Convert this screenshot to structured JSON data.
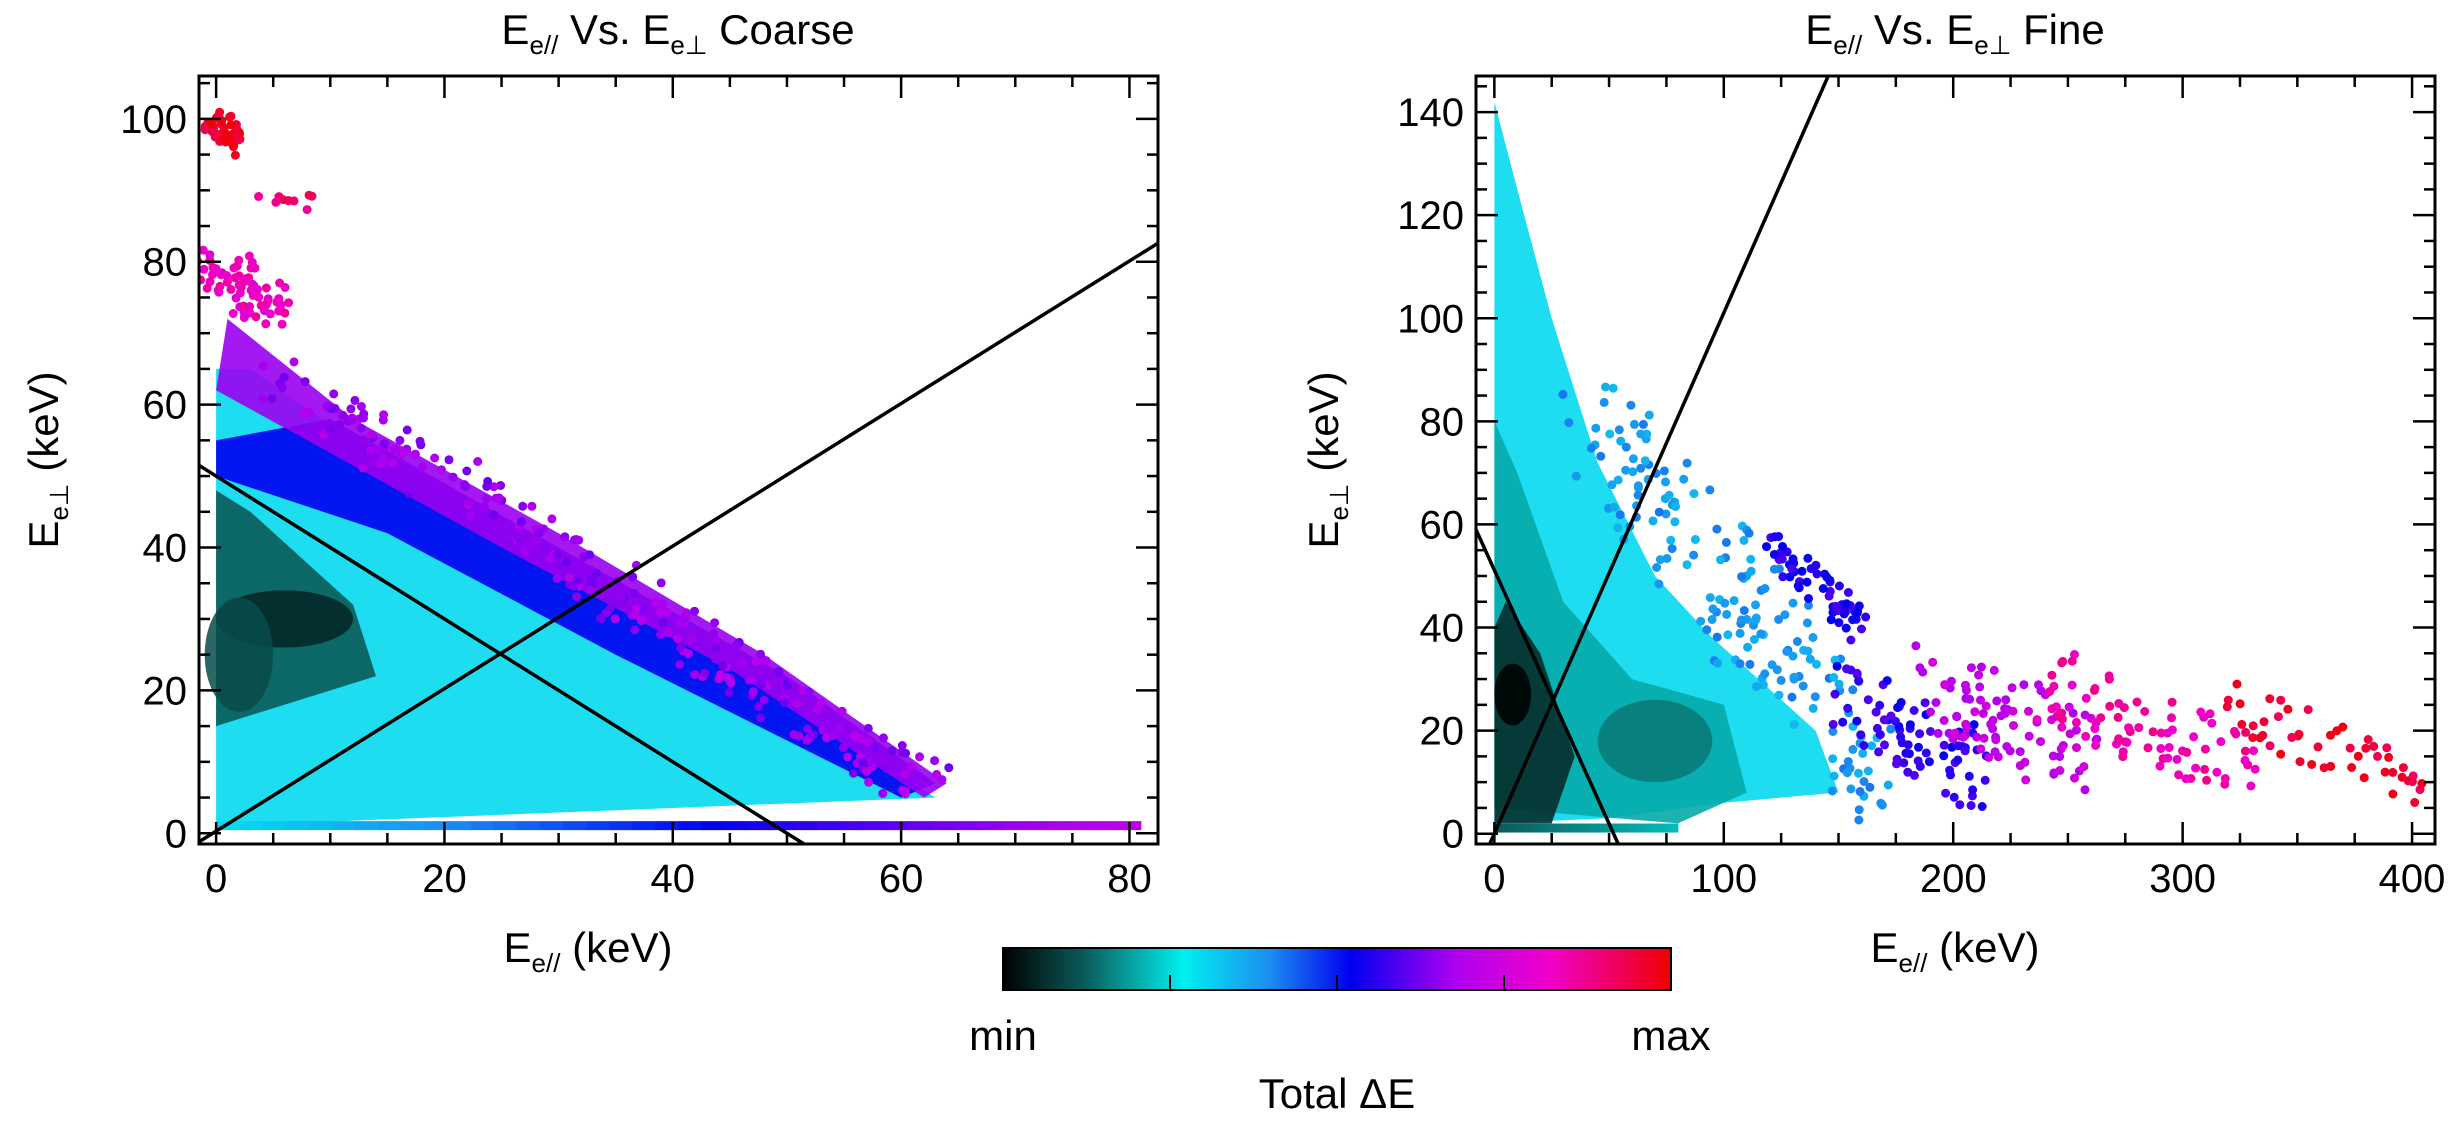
{
  "chart_data": [
    {
      "type": "scatter",
      "panel": "left",
      "title": {
        "main": "E",
        "sub1": "e//",
        "mid": " Vs. E",
        "sub2": "e⊥",
        "tail": "  Coarse"
      },
      "xlabel": {
        "main": "E",
        "sub": "e//",
        "tail": " (keV)"
      },
      "ylabel": {
        "main": "E",
        "sub": "e⊥",
        "tail": " (keV)"
      },
      "xlim": [
        -1.5,
        82.5
      ],
      "ylim": [
        -1.5,
        106
      ],
      "xticks": [
        0,
        20,
        40,
        60,
        80
      ],
      "yticks": [
        0,
        20,
        40,
        60,
        80,
        100
      ],
      "xtick_labels": [
        "0",
        "20",
        "40",
        "60",
        "80"
      ],
      "ytick_labels": [
        "0",
        "20",
        "40",
        "60",
        "80",
        "100"
      ],
      "color_by": "Total ΔE",
      "regions": [
        {
          "name": "main-triangle-fill",
          "points": [
            [
              0,
              1
            ],
            [
              63,
              5
            ],
            [
              30,
              38
            ],
            [
              12,
              55
            ],
            [
              3,
              65
            ],
            [
              0,
              65
            ]
          ],
          "c": 0.3
        },
        {
          "name": "dense-core",
          "points": [
            [
              0,
              15
            ],
            [
              14,
              22
            ],
            [
              12,
              32
            ],
            [
              3,
              45
            ],
            [
              0,
              48
            ]
          ],
          "c": 0.12
        },
        {
          "name": "upper-blue-band",
          "points": [
            [
              0,
              55
            ],
            [
              10,
              58
            ],
            [
              30,
              40
            ],
            [
              50,
              22
            ],
            [
              63,
              7
            ],
            [
              60,
              5
            ],
            [
              35,
              25
            ],
            [
              15,
              42
            ],
            [
              0,
              50
            ]
          ],
          "c": 0.52
        },
        {
          "name": "outer-purple-band",
          "points": [
            [
              1,
              72
            ],
            [
              12,
              58
            ],
            [
              30,
              42
            ],
            [
              48,
              25
            ],
            [
              64,
              7
            ],
            [
              62,
              5
            ],
            [
              45,
              23
            ],
            [
              25,
              40
            ],
            [
              8,
              55
            ],
            [
              0,
              62
            ]
          ],
          "c": 0.66
        }
      ],
      "clusters": [
        {
          "x": 6,
          "y": 30,
          "rx": 6,
          "ry": 4,
          "c": 0.05
        },
        {
          "x": 2,
          "y": 25,
          "rx": 3,
          "ry": 8,
          "c": 0.1
        }
      ],
      "scatter_bands": [
        {
          "x0": 0,
          "y0": 100,
          "x1": 1.5,
          "y1": 96,
          "spread": 1.5,
          "c": 0.96,
          "n": 45
        },
        {
          "x0": 0,
          "y0": 80,
          "x1": 5,
          "y1": 73,
          "spread": 2.5,
          "c": 0.82,
          "n": 70
        },
        {
          "x0": 6,
          "y0": 64,
          "x1": 62,
          "y1": 6,
          "spread": 3.0,
          "c": 0.66,
          "n": 260
        },
        {
          "x0": 4,
          "y0": 90,
          "x1": 9,
          "y1": 88,
          "spread": 1.2,
          "c": 0.9,
          "n": 10
        }
      ],
      "baseline": {
        "y": 1,
        "x_from": 0,
        "x_to": 81,
        "c_from": 0.3,
        "c_to": 0.72
      },
      "lines": [
        {
          "name": "diagonal-line-1",
          "x": [
            -1.5,
            82.5
          ],
          "y": [
            -1.2,
            82.6
          ]
        },
        {
          "name": "diagonal-line-2",
          "x": [
            -1.5,
            51.5
          ],
          "y": [
            51.5,
            -1.5
          ]
        }
      ]
    },
    {
      "type": "scatter",
      "panel": "right",
      "title": {
        "main": "E",
        "sub1": "e//",
        "mid": " Vs. E",
        "sub2": "e⊥",
        "tail": "  Fine"
      },
      "xlabel": {
        "main": "E",
        "sub": "e//",
        "tail": " (keV)"
      },
      "ylabel": {
        "main": "E",
        "sub": "e⊥",
        "tail": " (keV)"
      },
      "xlim": [
        -8,
        410
      ],
      "ylim": [
        -2,
        147
      ],
      "xticks": [
        0,
        100,
        200,
        300,
        400
      ],
      "yticks": [
        0,
        20,
        40,
        60,
        80,
        100,
        120,
        140
      ],
      "xtick_labels": [
        "0",
        "100",
        "200",
        "300",
        "400"
      ],
      "ytick_labels": [
        "0",
        "20",
        "40",
        "60",
        "80",
        "100",
        "120",
        "140"
      ],
      "color_by": "Total ΔE",
      "regions": [
        {
          "name": "cyan-plume",
          "points": [
            [
              0,
              142
            ],
            [
              10,
              125
            ],
            [
              25,
              100
            ],
            [
              45,
              72
            ],
            [
              70,
              50
            ],
            [
              95,
              38
            ],
            [
              120,
              28
            ],
            [
              140,
              20
            ],
            [
              150,
              8
            ],
            [
              100,
              6
            ],
            [
              50,
              3
            ],
            [
              0,
              2
            ]
          ],
          "c": 0.3
        },
        {
          "name": "teal-core",
          "points": [
            [
              0,
              5
            ],
            [
              80,
              2
            ],
            [
              110,
              8
            ],
            [
              100,
              25
            ],
            [
              60,
              30
            ],
            [
              30,
              45
            ],
            [
              10,
              70
            ],
            [
              0,
              80
            ]
          ],
          "c": 0.2
        },
        {
          "name": "dark-core",
          "points": [
            [
              0,
              2
            ],
            [
              25,
              2
            ],
            [
              35,
              15
            ],
            [
              20,
              35
            ],
            [
              5,
              45
            ],
            [
              0,
              40
            ]
          ],
          "c": 0.06
        }
      ],
      "clusters": [
        {
          "x": 8,
          "y": 27,
          "rx": 8,
          "ry": 6,
          "c": 0.0
        },
        {
          "x": 70,
          "y": 18,
          "rx": 25,
          "ry": 8,
          "c": 0.15
        }
      ],
      "scatter_bands": [
        {
          "x0": 40,
          "y0": 80,
          "x1": 170,
          "y1": 12,
          "spread": 12,
          "c": 0.38,
          "n": 180
        },
        {
          "x0": 120,
          "y0": 55,
          "x1": 160,
          "y1": 40,
          "spread": 4,
          "c": 0.55,
          "n": 60
        },
        {
          "x0": 150,
          "y0": 25,
          "x1": 210,
          "y1": 12,
          "spread": 8,
          "c": 0.56,
          "n": 80
        },
        {
          "x0": 190,
          "y0": 28,
          "x1": 260,
          "y1": 15,
          "spread": 9,
          "c": 0.72,
          "n": 90
        },
        {
          "x0": 240,
          "y0": 28,
          "x1": 330,
          "y1": 12,
          "spread": 8,
          "c": 0.84,
          "n": 80
        },
        {
          "x0": 320,
          "y0": 25,
          "x1": 405,
          "y1": 9,
          "spread": 6,
          "c": 0.95,
          "n": 50
        }
      ],
      "baseline": {
        "y": 1,
        "x_from": 0,
        "x_to": 80,
        "c_from": 0.12,
        "c_to": 0.22
      },
      "lines": [
        {
          "name": "steep-line",
          "x": [
            -2,
            145.5
          ],
          "y": [
            -2,
            147
          ]
        },
        {
          "name": "diagonal-line",
          "x": [
            -8,
            54
          ],
          "y": [
            59,
            -2
          ]
        }
      ]
    }
  ],
  "colorbar": {
    "min_label": "min",
    "max_label": "max",
    "label": "Total ΔE",
    "ticks": [
      0.25,
      0.5,
      0.75
    ],
    "stops": [
      {
        "pos": 0.0,
        "color": "#000000"
      },
      {
        "pos": 0.12,
        "color": "#0a5a58"
      },
      {
        "pos": 0.27,
        "color": "#00f0f0"
      },
      {
        "pos": 0.4,
        "color": "#1c8cf0"
      },
      {
        "pos": 0.52,
        "color": "#0000f0"
      },
      {
        "pos": 0.68,
        "color": "#b000f0"
      },
      {
        "pos": 0.82,
        "color": "#f000c8"
      },
      {
        "pos": 1.0,
        "color": "#f00000"
      }
    ]
  }
}
